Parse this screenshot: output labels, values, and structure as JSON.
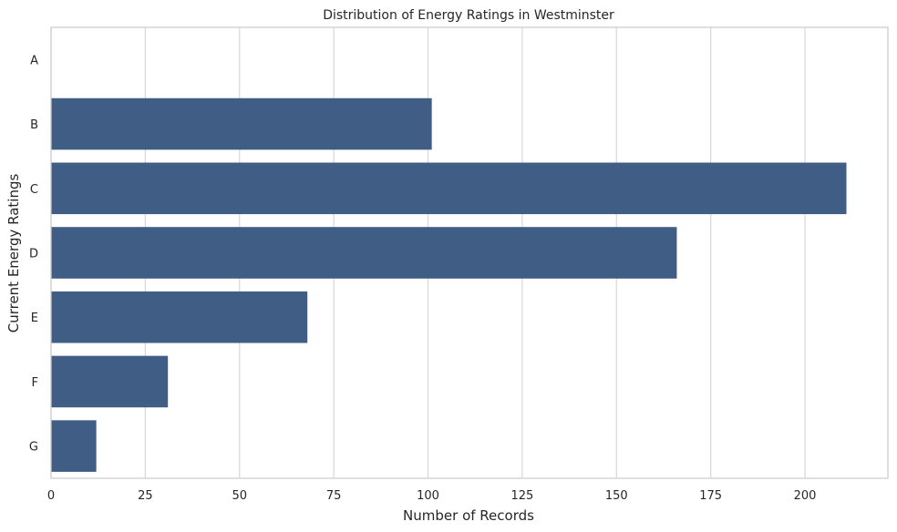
{
  "chart_data": {
    "type": "bar",
    "orientation": "horizontal",
    "title": "Distribution of Energy Ratings in Westminster",
    "xlabel": "Number of Records",
    "ylabel": "Current Energy Ratings",
    "categories": [
      "A",
      "B",
      "C",
      "D",
      "E",
      "F",
      "G"
    ],
    "values": [
      0,
      101,
      211,
      166,
      68,
      31,
      12
    ],
    "xlim": [
      0,
      222
    ],
    "xticks": [
      0,
      25,
      50,
      75,
      100,
      125,
      150,
      175,
      200
    ],
    "grid": "vertical",
    "bar_color": "#3f5d85",
    "grid_color": "#d9d9d9",
    "spine_color": "#cccccc"
  }
}
